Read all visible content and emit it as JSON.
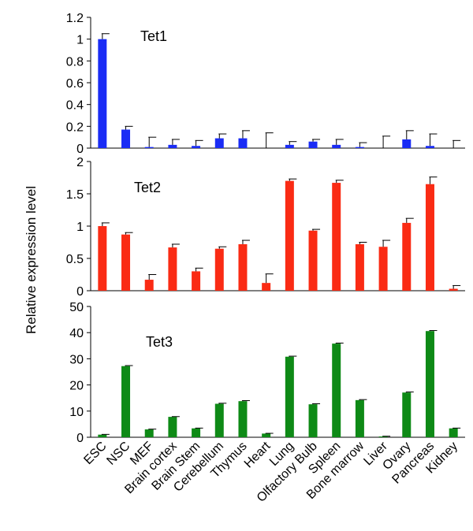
{
  "chart_data": {
    "type": "bar",
    "ylabel": "Relative expression level",
    "categories": [
      "ESC",
      "NSC",
      "MEF",
      "Brain cortex",
      "Brain Stem",
      "Cerebellum",
      "Thymus",
      "Heart",
      "Lung",
      "Olfactory Bulb",
      "Spleen",
      "Bone marrow",
      "Liver",
      "Ovary",
      "Pancreas",
      "Kidney"
    ],
    "panels": [
      {
        "name": "Tet1",
        "color": "#1a2cf5",
        "ylim": [
          0,
          1.2
        ],
        "yticks": [
          "0",
          "0.2",
          "0.4",
          "0.6",
          "0.8",
          "1",
          "1.2"
        ],
        "values": [
          1.0,
          0.17,
          0.01,
          0.03,
          0.02,
          0.09,
          0.09,
          0.0,
          0.03,
          0.06,
          0.03,
          0.01,
          0.0,
          0.08,
          0.02,
          0.0
        ],
        "errors": [
          0.05,
          0.03,
          0.09,
          0.05,
          0.05,
          0.04,
          0.07,
          0.14,
          0.03,
          0.02,
          0.05,
          0.04,
          0.11,
          0.08,
          0.11,
          0.07
        ]
      },
      {
        "name": "Tet2",
        "color": "#fa2b14",
        "ylim": [
          0,
          2
        ],
        "yticks": [
          "0",
          "0.5",
          "1",
          "1.5",
          "2"
        ],
        "values": [
          1.0,
          0.87,
          0.17,
          0.67,
          0.3,
          0.65,
          0.72,
          0.12,
          1.7,
          0.93,
          1.67,
          0.72,
          0.68,
          1.05,
          1.65,
          0.03
        ],
        "errors": [
          0.05,
          0.03,
          0.08,
          0.05,
          0.05,
          0.03,
          0.06,
          0.14,
          0.03,
          0.02,
          0.04,
          0.03,
          0.1,
          0.07,
          0.11,
          0.05
        ]
      },
      {
        "name": "Tet3",
        "color": "#0e8a16",
        "ylim": [
          0,
          50
        ],
        "yticks": [
          "0",
          "10",
          "20",
          "30",
          "40",
          "50"
        ],
        "values": [
          1.0,
          27.2,
          3.0,
          7.8,
          3.4,
          12.8,
          13.8,
          1.4,
          30.8,
          12.6,
          35.8,
          14.2,
          0.3,
          17.1,
          40.6,
          3.4
        ],
        "errors": [
          0.1,
          0.2,
          0.1,
          0.1,
          0.1,
          0.2,
          0.2,
          0.1,
          0.2,
          0.2,
          0.2,
          0.2,
          0.1,
          0.2,
          0.2,
          0.1
        ]
      }
    ]
  }
}
